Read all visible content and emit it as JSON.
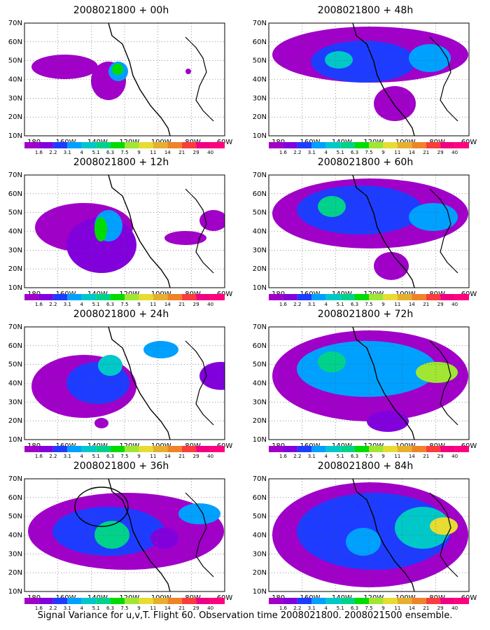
{
  "panels": [
    {
      "id": "00h",
      "title": "2008021800 + 00h",
      "col": 0,
      "row": 0
    },
    {
      "id": "12h",
      "title": "2008021800 + 12h",
      "col": 0,
      "row": 1
    },
    {
      "id": "24h",
      "title": "2008021800 + 24h",
      "col": 0,
      "row": 2
    },
    {
      "id": "36h",
      "title": "2008021800 + 36h",
      "col": 0,
      "row": 3
    },
    {
      "id": "48h",
      "title": "2008021800 + 48h",
      "col": 1,
      "row": 0
    },
    {
      "id": "60h",
      "title": "2008021800 + 60h",
      "col": 1,
      "row": 1
    },
    {
      "id": "72h",
      "title": "2008021800 + 72h",
      "col": 1,
      "row": 2
    },
    {
      "id": "84h",
      "title": "2008021800 + 84h",
      "col": 1,
      "row": 3
    }
  ],
  "lat_labels": [
    "10N",
    "20N",
    "30N",
    "40N",
    "50N",
    "60N",
    "70N"
  ],
  "lon_labels": [
    "180",
    "160W",
    "140W",
    "120W",
    "100W",
    "80W",
    "60W"
  ],
  "colorbar": {
    "labels": [
      "1.6",
      "2.2",
      "3.1",
      "4",
      "5.1",
      "6.3",
      "7.5",
      "9",
      "11",
      "14",
      "21",
      "29",
      "40"
    ],
    "colors": [
      "#a000c8",
      "#8200dc",
      "#1e3cff",
      "#00a0ff",
      "#00c8c8",
      "#00d28c",
      "#00dc00",
      "#a0e632",
      "#e6dc32",
      "#e6af2d",
      "#f08228",
      "#fa3c3c",
      "#f00082",
      "#ff0080"
    ]
  },
  "caption": "Signal Variance for u,v,T. Flight 60. Observation time 2008021800. 2008021500 ensemble."
}
